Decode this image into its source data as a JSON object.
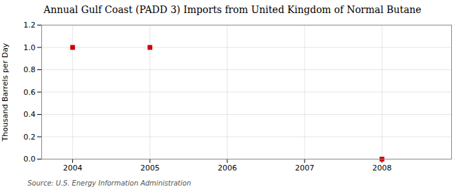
{
  "chart_data": {
    "type": "scatter",
    "title": "Annual Gulf Coast (PADD 3) Imports from United Kingdom of Normal Butane",
    "ylabel": "Thousand Barrels per Day",
    "source": "Source: U.S. Energy Information Administration",
    "x": [
      2004,
      2005,
      2008
    ],
    "values": [
      1.0,
      1.0,
      0.0
    ],
    "color": "#CC0000",
    "marker": "square",
    "xlim": [
      2003.6,
      2008.9
    ],
    "ylim": [
      0.0,
      1.2
    ],
    "xticks": [
      2004,
      2005,
      2006,
      2007,
      2008
    ],
    "yticks": [
      {
        "value": 0.0,
        "label": "0.0"
      },
      0.2,
      0.4,
      0.6,
      0.8,
      {
        "value": 1.0,
        "label": "1.0"
      },
      1.2
    ],
    "grid": true
  }
}
